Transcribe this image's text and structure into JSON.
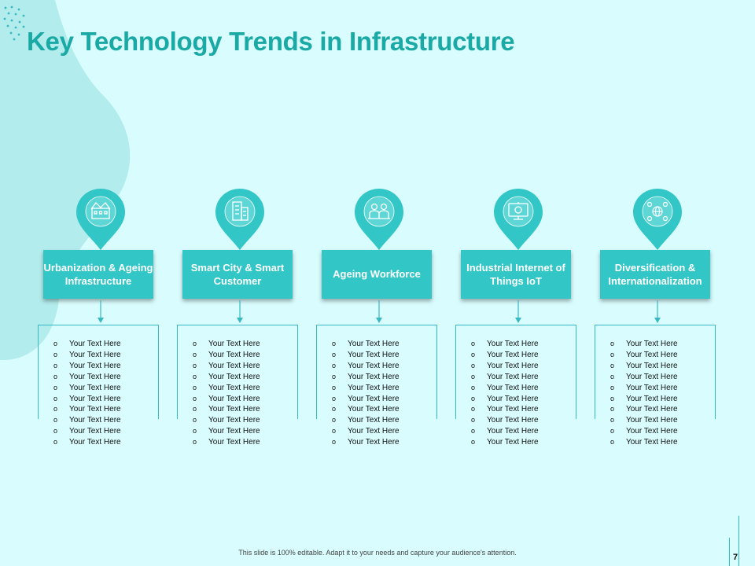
{
  "title": "Key Technology Trends in Infrastructure",
  "colors": {
    "accent": "#32c6c7",
    "title": "#1aa9a4",
    "background": "#d9fdfe",
    "blob": "#b3ecec"
  },
  "columns": [
    {
      "label": "Urbanization & Ageing Infrastructure",
      "icon": "buildings-icon",
      "items": [
        "Your Text Here",
        "Your Text Here",
        "Your Text Here",
        "Your Text Here",
        "Your Text Here",
        "Your Text Here",
        "Your Text Here",
        "Your Text Here",
        "Your Text Here",
        "Your Text Here"
      ]
    },
    {
      "label": "Smart City & Smart Customer",
      "icon": "office-building-icon",
      "items": [
        "Your Text Here",
        "Your Text Here",
        "Your Text Here",
        "Your Text Here",
        "Your Text Here",
        "Your Text Here",
        "Your Text Here",
        "Your Text Here",
        "Your Text Here",
        "Your Text Here"
      ]
    },
    {
      "label": "Ageing Workforce",
      "icon": "workers-icon",
      "items": [
        "Your Text Here",
        "Your Text Here",
        "Your Text Here",
        "Your Text Here",
        "Your Text Here",
        "Your Text Here",
        "Your Text Here",
        "Your Text Here",
        "Your Text Here",
        "Your Text Here"
      ]
    },
    {
      "label": "Industrial Internet of Things IoT",
      "icon": "iot-monitor-icon",
      "items": [
        "Your Text Here",
        "Your Text Here",
        "Your Text Here",
        "Your Text Here",
        "Your Text Here",
        "Your Text Here",
        "Your Text Here",
        "Your Text Here",
        "Your Text Here",
        "Your Text Here"
      ]
    },
    {
      "label": "Diversification & Internationalization",
      "icon": "globe-network-icon",
      "items": [
        "Your Text Here",
        "Your Text Here",
        "Your Text Here",
        "Your Text Here",
        "Your Text Here",
        "Your Text Here",
        "Your Text Here",
        "Your Text Here",
        "Your Text Here",
        "Your Text Here"
      ]
    }
  ],
  "bullet": "o",
  "footer": "This slide is 100% editable.  Adapt it to your needs and capture your audience's attention.",
  "page_number": "7"
}
